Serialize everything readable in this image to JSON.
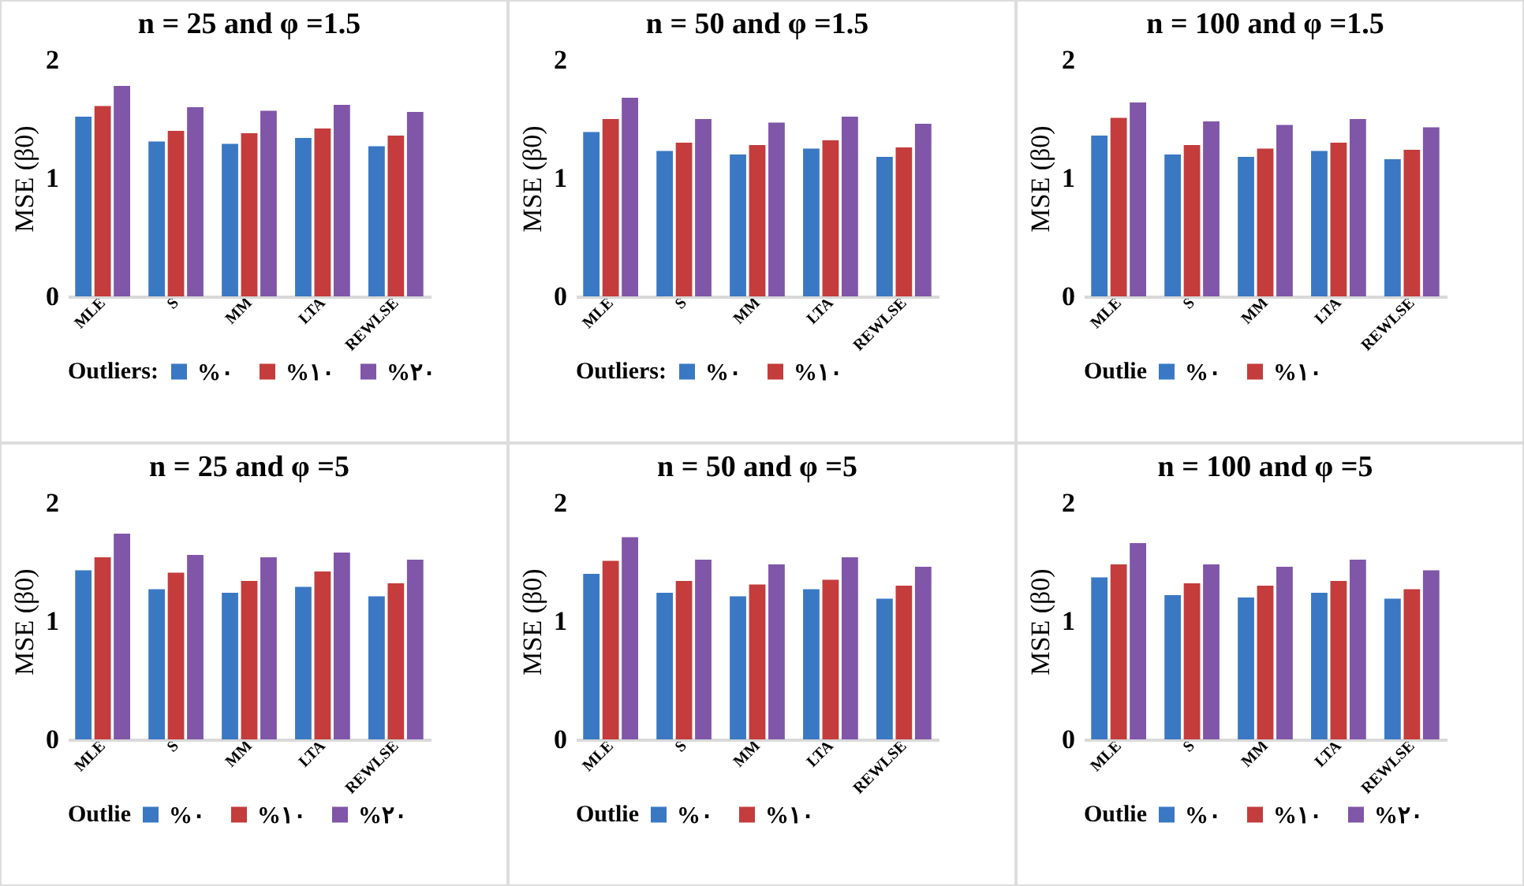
{
  "chart_data": [
    {
      "type": "bar",
      "title": "n = 25 and φ =1.5",
      "ylabel": "MSE (β0)",
      "legend_title": "Outliers:",
      "categories": [
        "MLE",
        "S",
        "MM",
        "LTA",
        "REWLSE"
      ],
      "ylim": [
        0,
        2
      ],
      "yticks": [
        0,
        1,
        2
      ],
      "legend": "bottom",
      "series": [
        {
          "name": "%٠",
          "color": "#3a78c3",
          "values": [
            1.52,
            1.31,
            1.29,
            1.34,
            1.27
          ]
        },
        {
          "name": "%١٠",
          "color": "#c43c3c",
          "values": [
            1.61,
            1.4,
            1.38,
            1.42,
            1.36
          ]
        },
        {
          "name": "%٢٠",
          "color": "#7f56a8",
          "values": [
            1.78,
            1.6,
            1.57,
            1.62,
            1.56
          ]
        }
      ]
    },
    {
      "type": "bar",
      "title": "n = 50 and φ =1.5",
      "ylabel": "MSE (β0)",
      "legend_title": "Outliers:",
      "categories": [
        "MLE",
        "S",
        "MM",
        "LTA",
        "REWLSE"
      ],
      "ylim": [
        0,
        2
      ],
      "yticks": [
        0,
        1,
        2
      ],
      "legend": "bottom",
      "series": [
        {
          "name": "%٠",
          "color": "#3a78c3",
          "values": [
            1.39,
            1.23,
            1.2,
            1.25,
            1.18
          ]
        },
        {
          "name": "%١٠",
          "color": "#c43c3c",
          "values": [
            1.5,
            1.3,
            1.28,
            1.32,
            1.26
          ]
        },
        {
          "color": "#7f56a8",
          "values": [
            1.68,
            1.5,
            1.47,
            1.52,
            1.46
          ]
        }
      ]
    },
    {
      "type": "bar",
      "title": "n = 100 and φ =1.5",
      "ylabel": "MSE (β0)",
      "legend_title": "Outlie",
      "categories": [
        "MLE",
        "S",
        "MM",
        "LTA",
        "REWLSE"
      ],
      "ylim": [
        0,
        2
      ],
      "yticks": [
        0,
        1,
        2
      ],
      "legend": "bottom",
      "series": [
        {
          "name": "%٠",
          "color": "#3a78c3",
          "values": [
            1.36,
            1.2,
            1.18,
            1.23,
            1.16
          ]
        },
        {
          "name": "%١٠",
          "color": "#c43c3c",
          "values": [
            1.51,
            1.28,
            1.25,
            1.3,
            1.24
          ]
        },
        {
          "color": "#7f56a8",
          "values": [
            1.64,
            1.48,
            1.45,
            1.5,
            1.43
          ]
        }
      ]
    },
    {
      "type": "bar",
      "title": "n = 25 and φ =5",
      "ylabel": "MSE (β0)",
      "legend_title": "Outlie",
      "categories": [
        "MLE",
        "S",
        "MM",
        "LTA",
        "REWLSE"
      ],
      "ylim": [
        0,
        2
      ],
      "yticks": [
        0,
        1,
        2
      ],
      "legend": "bottom",
      "series": [
        {
          "name": "%٠",
          "color": "#3a78c3",
          "values": [
            1.43,
            1.27,
            1.24,
            1.29,
            1.21
          ]
        },
        {
          "name": "%١٠",
          "color": "#c43c3c",
          "values": [
            1.54,
            1.41,
            1.34,
            1.42,
            1.32
          ]
        },
        {
          "name": "%٢٠",
          "color": "#7f56a8",
          "values": [
            1.74,
            1.56,
            1.54,
            1.58,
            1.52
          ]
        }
      ]
    },
    {
      "type": "bar",
      "title": "n = 50 and φ =5",
      "ylabel": "MSE (β0)",
      "legend_title": "Outlie",
      "categories": [
        "MLE",
        "S",
        "MM",
        "LTA",
        "REWLSE"
      ],
      "ylim": [
        0,
        2
      ],
      "yticks": [
        0,
        1,
        2
      ],
      "legend": "bottom",
      "series": [
        {
          "name": "%٠",
          "color": "#3a78c3",
          "values": [
            1.4,
            1.24,
            1.21,
            1.27,
            1.19
          ]
        },
        {
          "name": "%١٠",
          "color": "#c43c3c",
          "values": [
            1.51,
            1.34,
            1.31,
            1.35,
            1.3
          ]
        },
        {
          "color": "#7f56a8",
          "values": [
            1.71,
            1.52,
            1.48,
            1.54,
            1.46
          ]
        }
      ]
    },
    {
      "type": "bar",
      "title": "n = 100 and φ =5",
      "ylabel": "MSE (β0)",
      "legend_title": "Outlie",
      "categories": [
        "MLE",
        "S",
        "MM",
        "LTA",
        "REWLSE"
      ],
      "ylim": [
        0,
        2
      ],
      "yticks": [
        0,
        1,
        2
      ],
      "legend": "bottom",
      "series": [
        {
          "name": "%٠",
          "color": "#3a78c3",
          "values": [
            1.37,
            1.22,
            1.2,
            1.24,
            1.19
          ]
        },
        {
          "name": "%١٠",
          "color": "#c43c3c",
          "values": [
            1.48,
            1.32,
            1.3,
            1.34,
            1.27
          ]
        },
        {
          "name": "%٢٠",
          "color": "#7f56a8",
          "values": [
            1.66,
            1.48,
            1.46,
            1.52,
            1.43
          ]
        }
      ]
    }
  ]
}
